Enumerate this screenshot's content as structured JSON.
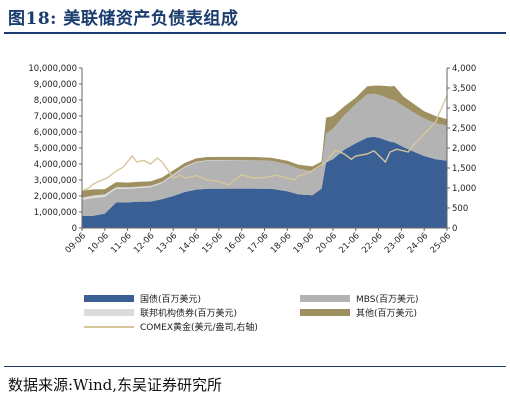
{
  "title": "图18:  美联储资产负债表组成",
  "source": "数据来源:Wind,东吴证券研究所",
  "colors": {
    "treasuries": "#3a5f95",
    "mbs": "#b3b3b3",
    "agency": "#dcdcdc",
    "other": "#9e9060",
    "gold": "#d6c79a",
    "axis": "#666666"
  },
  "chart_data": {
    "type": "area",
    "stacked": true,
    "x_tick_labels": [
      "09-06",
      "10-06",
      "11-06",
      "12-06",
      "13-06",
      "14-06",
      "15-06",
      "16-06",
      "17-06",
      "18-06",
      "19-06",
      "20-06",
      "21-06",
      "22-06",
      "23-06",
      "24-06",
      "25-06"
    ],
    "y_left": {
      "ticks": [
        "0",
        "1,000,000",
        "2,000,000",
        "3,000,000",
        "4,000,000",
        "5,000,000",
        "6,000,000",
        "7,000,000",
        "8,000,000",
        "9,000,000",
        "10,000,000"
      ],
      "lim": [
        0,
        10000000
      ]
    },
    "y_right": {
      "ticks": [
        "0",
        "500",
        "1,000",
        "1,500",
        "2,000",
        "2,500",
        "3,000",
        "3,500",
        "4,000"
      ],
      "lim": [
        0,
        4000
      ]
    },
    "x": [
      2009.5,
      2010.0,
      2010.5,
      2011.0,
      2011.5,
      2012.0,
      2012.5,
      2013.0,
      2013.5,
      2014.0,
      2014.5,
      2015.0,
      2016.0,
      2017.0,
      2017.8,
      2018.5,
      2019.0,
      2019.6,
      2020.0,
      2020.2,
      2020.5,
      2021.0,
      2021.5,
      2022.0,
      2022.3,
      2022.6,
      2023.0,
      2023.2,
      2023.6,
      2024.0,
      2024.5,
      2025.0,
      2025.5
    ],
    "series": [
      {
        "name": "国债(百万美元)",
        "color_key": "treasuries",
        "values": [
          760000,
          770000,
          900000,
          1600000,
          1600000,
          1650000,
          1650000,
          1800000,
          2000000,
          2250000,
          2400000,
          2450000,
          2460000,
          2460000,
          2450000,
          2300000,
          2100000,
          2050000,
          2450000,
          4100000,
          4300000,
          4900000,
          5300000,
          5650000,
          5700000,
          5600000,
          5400000,
          5350000,
          5050000,
          4800000,
          4500000,
          4300000,
          4200000
        ]
      },
      {
        "name": "MBS(百万美元)",
        "color_key": "mbs",
        "values": [
          1000000,
          1100000,
          1050000,
          850000,
          850000,
          850000,
          900000,
          1000000,
          1300000,
          1550000,
          1700000,
          1750000,
          1760000,
          1770000,
          1740000,
          1680000,
          1600000,
          1500000,
          1400000,
          1800000,
          1900000,
          2150000,
          2450000,
          2700000,
          2700000,
          2700000,
          2650000,
          2620000,
          2550000,
          2450000,
          2350000,
          2250000,
          2200000
        ]
      },
      {
        "name": "联邦机构债券(百万美元)",
        "color_key": "agency",
        "values": [
          125000,
          160000,
          150000,
          100000,
          90000,
          85000,
          80000,
          70000,
          57000,
          45000,
          40000,
          35000,
          25000,
          10000,
          5000,
          3000,
          2500,
          2500,
          2400,
          2400,
          2400,
          2400,
          2400,
          2400,
          2400,
          2400,
          2400,
          2400,
          2400,
          2400,
          2400,
          2400,
          2400
        ]
      },
      {
        "name": "其他(百万美元)",
        "color_key": "other",
        "values": [
          450000,
          380000,
          320000,
          320000,
          300000,
          300000,
          280000,
          280000,
          240000,
          220000,
          210000,
          200000,
          200000,
          200000,
          200000,
          220000,
          250000,
          300000,
          300000,
          1000000,
          800000,
          550000,
          400000,
          500000,
          500000,
          600000,
          800000,
          900000,
          600000,
          550000,
          450000,
          450000,
          400000
        ]
      }
    ],
    "line_series": {
      "name": "COMEX黄金(美元/盎司,右轴)",
      "color_key": "gold",
      "axis": "right",
      "x": [
        2009.5,
        2009.8,
        2010.0,
        2010.3,
        2010.6,
        2011.0,
        2011.3,
        2011.7,
        2011.9,
        2012.2,
        2012.5,
        2012.8,
        2013.0,
        2013.3,
        2013.5,
        2013.8,
        2014.0,
        2014.5,
        2015.0,
        2015.5,
        2015.9,
        2016.5,
        2017.0,
        2017.5,
        2018.0,
        2018.5,
        2018.8,
        2019.0,
        2019.5,
        2020.0,
        2020.2,
        2020.6,
        2021.0,
        2021.3,
        2021.5,
        2022.0,
        2022.3,
        2022.8,
        2023.0,
        2023.3,
        2023.8,
        2024.0,
        2024.5,
        2025.0,
        2025.3,
        2025.5
      ],
      "values": [
        930,
        1000,
        1100,
        1180,
        1250,
        1420,
        1520,
        1800,
        1650,
        1690,
        1600,
        1750,
        1660,
        1420,
        1250,
        1320,
        1250,
        1310,
        1200,
        1170,
        1080,
        1330,
        1250,
        1260,
        1320,
        1250,
        1200,
        1300,
        1400,
        1580,
        1650,
        1950,
        1850,
        1720,
        1800,
        1850,
        1930,
        1650,
        1900,
        1970,
        1900,
        2050,
        2350,
        2650,
        3050,
        3300
      ]
    }
  }
}
